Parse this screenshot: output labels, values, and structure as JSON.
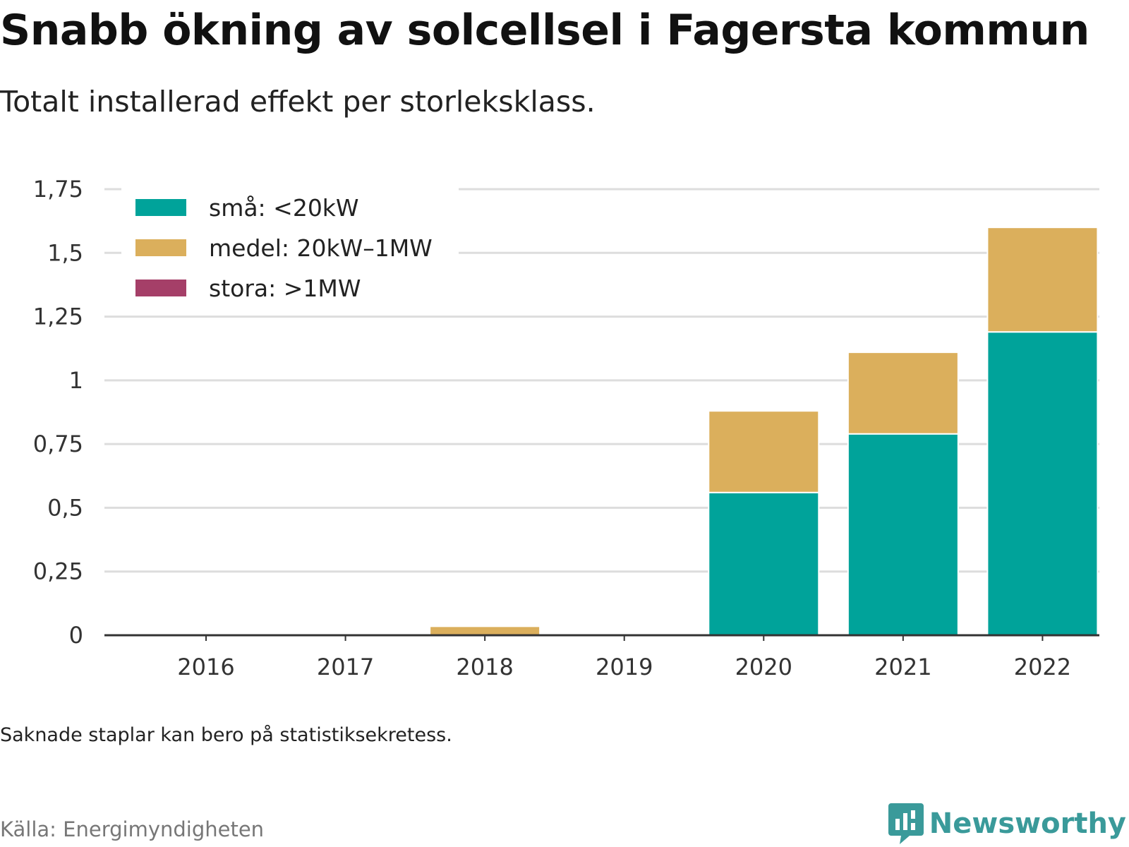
{
  "title": "Snabb ökning av solcellsel i Fagersta kommun",
  "subtitle": "Totalt installerad effekt per storleksklass.",
  "note": "Saknade staplar kan bero på statistiksekretess.",
  "source": "Källa: Energimyndigheten",
  "brand": {
    "name": "Newsworthy",
    "icon": "newsworthy-logo-icon",
    "color": "#3a9a9a"
  },
  "chart_data": {
    "type": "bar",
    "stacked": true,
    "categories": [
      "2016",
      "2017",
      "2018",
      "2019",
      "2020",
      "2021",
      "2022"
    ],
    "series": [
      {
        "name": "små: <20kW",
        "color": "#00a39a",
        "values": [
          0,
          0,
          0,
          0,
          0.56,
          0.79,
          1.19
        ]
      },
      {
        "name": "medel: 20kW–1MW",
        "color": "#dbaf5c",
        "values": [
          0,
          0,
          0.035,
          0,
          0.32,
          0.32,
          0.41
        ]
      },
      {
        "name": "stora: >1MW",
        "color": "#a53f68",
        "values": [
          0,
          0,
          0,
          0,
          0,
          0,
          0
        ]
      }
    ],
    "ylim": [
      0,
      1.75
    ],
    "yticks": [
      {
        "value": 0,
        "label": "0"
      },
      {
        "value": 0.25,
        "label": "0,25"
      },
      {
        "value": 0.5,
        "label": "0,5"
      },
      {
        "value": 0.75,
        "label": "0,75"
      },
      {
        "value": 1,
        "label": "1"
      },
      {
        "value": 1.25,
        "label": "1,25"
      },
      {
        "value": 1.5,
        "label": "1,5"
      },
      {
        "value": 1.75,
        "label": "1,75"
      }
    ],
    "grid": true,
    "legend_position": "top-left",
    "xlabel": "",
    "ylabel": ""
  }
}
